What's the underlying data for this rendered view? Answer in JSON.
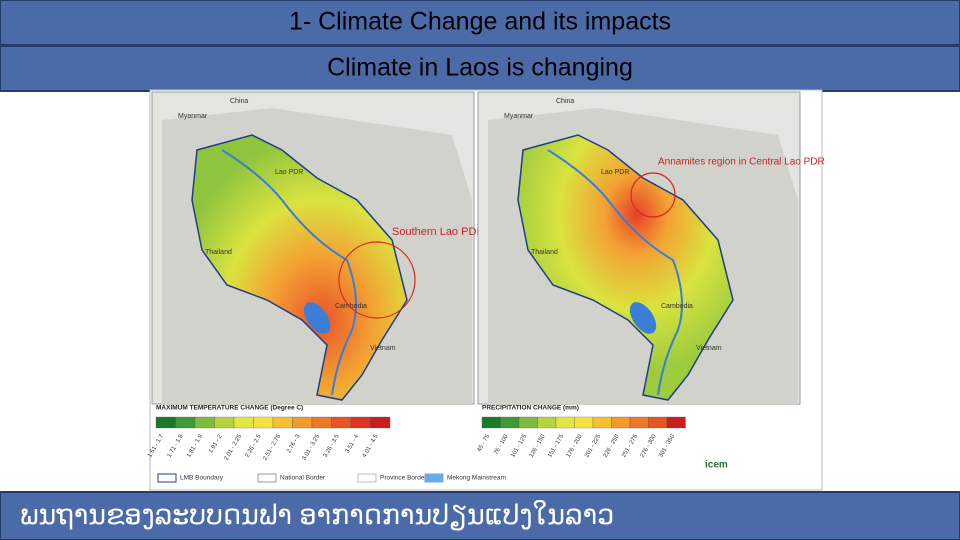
{
  "header": {
    "title": "1- Climate Change and its impacts",
    "subtitle": "Climate in Laos is changing"
  },
  "maps": [
    {
      "labels": [
        "China",
        "Myanmar",
        "Lao PDR",
        "Thailand",
        "Cambodia",
        "Vietnam"
      ],
      "annotation": "Southern Lao PDR",
      "legend_title": "MAXIMUM TEMPERATURE CHANGE (Degree C)",
      "legend": [
        "1.51 - 1.7",
        "1.71 - 1.8",
        "1.81 - 1.9",
        "1.91 - 2",
        "2.01 - 2.25",
        "2.26 - 2.5",
        "2.51 - 2.75",
        "2.76 - 3",
        "3.01 - 3.25",
        "3.26 - 3.5",
        "3.51 - 4",
        "4.01 - 4.5"
      ],
      "colors": [
        "#1a7a2a",
        "#3f9a35",
        "#7cbd3c",
        "#b5d43e",
        "#e3e640",
        "#f5e23a",
        "#f6c030",
        "#f29a2a",
        "#ee7726",
        "#e85422",
        "#dd3520",
        "#c81e1e"
      ]
    },
    {
      "labels": [
        "China",
        "Myanmar",
        "Lao PDR",
        "Thailand",
        "Cambodia",
        "Vietnam"
      ],
      "annotation": "Annamites region in Central Lao PDR",
      "legend_title": "PRECIPITATION CHANGE (mm)",
      "legend": [
        "45 - 75",
        "76 - 100",
        "101 - 125",
        "126 - 150",
        "151 - 175",
        "176 - 200",
        "201 - 225",
        "226 - 250",
        "251 - 275",
        "276 - 300",
        "301 - 350"
      ],
      "colors": [
        "#1a7a2a",
        "#3f9a35",
        "#7cbd3c",
        "#b5d43e",
        "#e3e640",
        "#f5e23a",
        "#f6c030",
        "#f29a2a",
        "#ee7726",
        "#e85422",
        "#c81e1e"
      ]
    }
  ],
  "map_legend": [
    "LMB Boundary",
    "National Border",
    "Province Border",
    "Mekong Mainstream"
  ],
  "logo": "icem",
  "footer": "ພນຖານຂອງລະບບດນຟາ ອາກາດການປຽນແປງໃນລາວ"
}
